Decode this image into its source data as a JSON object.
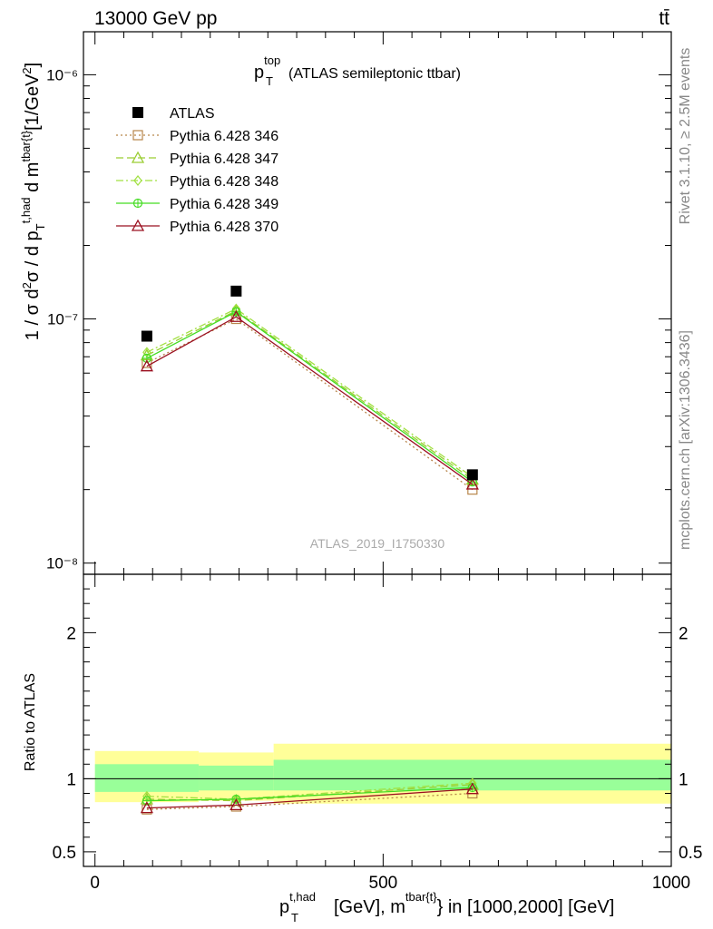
{
  "header": {
    "left": "13000 GeV pp",
    "right": "tt̄"
  },
  "side_labels": {
    "rivet": "Rivet 3.1.10, ≥ 2.5M events",
    "mcplots": "mcplots.cern.ch [arXiv:1306.3436]"
  },
  "chart_data": [
    {
      "type": "line",
      "title": {
        "p": "p",
        "sub": "T",
        "sup": "top",
        "rest": " (ATLAS semileptonic ttbar)"
      },
      "watermark": "ATLAS_2019_I1750330",
      "ylabel": "1 / σ d²σ / d p_T^{t,had} d m^{tbar{t}} [1/GeV²]",
      "yscale": "log",
      "ylim": [
        9e-09,
        1.5e-06
      ],
      "xlim": [
        -20,
        1000
      ],
      "ytick_labels": [
        "10⁻⁸",
        "10⁻⁷",
        "10⁻⁶"
      ],
      "legend_position": "top-left",
      "x": [
        90,
        245,
        655
      ],
      "series": [
        {
          "name": "ATLAS",
          "color": "#000000",
          "marker": "square",
          "dash": "",
          "values": [
            8.5e-08,
            1.3e-07,
            2.3e-08
          ]
        },
        {
          "name": "Pythia 6.428 346",
          "color": "#b8864b",
          "marker": "square-open",
          "dash": "2,3",
          "values": [
            6.6e-08,
            1e-07,
            2e-08
          ]
        },
        {
          "name": "Pythia 6.428 347",
          "color": "#9acd32",
          "marker": "triangle-open",
          "dash": "8,4",
          "values": [
            7.1e-08,
            1.08e-07,
            2.2e-08
          ]
        },
        {
          "name": "Pythia 6.428 348",
          "color": "#a0e040",
          "marker": "diamond-open",
          "dash": "8,3,2,3",
          "values": [
            7.3e-08,
            1.1e-07,
            2.25e-08
          ]
        },
        {
          "name": "Pythia 6.428 349",
          "color": "#44dd22",
          "marker": "circle-cross",
          "dash": "",
          "values": [
            6.9e-08,
            1.07e-07,
            2.15e-08
          ]
        },
        {
          "name": "Pythia 6.428 370",
          "color": "#9b1020",
          "marker": "triangle-open",
          "dash": "",
          "values": [
            6.4e-08,
            1.02e-07,
            2.1e-08
          ]
        }
      ]
    },
    {
      "type": "line",
      "ylabel": "Ratio to ATLAS",
      "xlabel": "p_T^{t,had} [GeV], m^{tbar{t}} in [1000,2000] [GeV]",
      "ylim": [
        0.4,
        2.4
      ],
      "xlim": [
        -20,
        1000
      ],
      "yticks": [
        0.5,
        1,
        2
      ],
      "ytick_labels": [
        "0.5",
        "1",
        "2"
      ],
      "xticks": [
        0,
        500,
        1000
      ],
      "xtick_labels": [
        "0",
        "500",
        "1000"
      ],
      "reference": 1,
      "bins": [
        {
          "range": [
            0,
            180
          ],
          "green": [
            0.91,
            1.1
          ],
          "yellow": [
            0.84,
            1.19
          ]
        },
        {
          "range": [
            180,
            310
          ],
          "green": [
            0.92,
            1.09
          ],
          "yellow": [
            0.85,
            1.18
          ]
        },
        {
          "range": [
            310,
            1000
          ],
          "green": [
            0.92,
            1.13
          ],
          "yellow": [
            0.83,
            1.24
          ]
        }
      ],
      "band_colors": {
        "green": "#99ff99",
        "yellow": "#ffff99"
      },
      "x": [
        90,
        245,
        655
      ],
      "series": [
        {
          "name": "Pythia 6.428 346",
          "values": [
            0.79,
            0.81,
            0.9
          ]
        },
        {
          "name": "Pythia 6.428 347",
          "values": [
            0.86,
            0.85,
            0.96
          ]
        },
        {
          "name": "Pythia 6.428 348",
          "values": [
            0.88,
            0.86,
            0.97
          ]
        },
        {
          "name": "Pythia 6.428 349",
          "values": [
            0.85,
            0.86,
            0.94
          ]
        },
        {
          "name": "Pythia 6.428 370",
          "values": [
            0.8,
            0.82,
            0.93
          ]
        }
      ]
    }
  ]
}
